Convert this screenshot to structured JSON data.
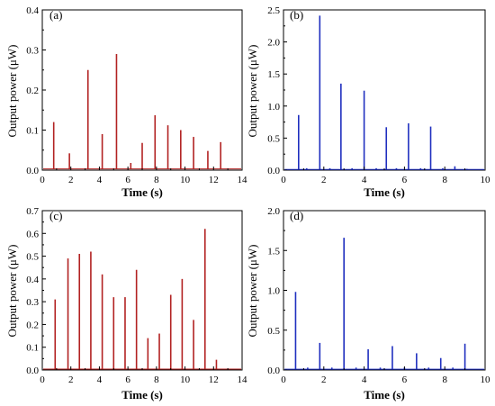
{
  "chart_data": [
    {
      "type": "bar",
      "panel_label": "(a)",
      "xlabel": "Time (s)",
      "ylabel": "Output power (μW)",
      "xlim": [
        0,
        14
      ],
      "ylim": [
        0,
        0.4
      ],
      "xticks": [
        0,
        2,
        4,
        6,
        8,
        10,
        12,
        14
      ],
      "yticks": [
        0.0,
        0.1,
        0.2,
        0.3,
        0.4
      ],
      "xtick_labels": [
        "0",
        "2",
        "4",
        "6",
        "8",
        "10",
        "12",
        "14"
      ],
      "ytick_labels": [
        "0.0",
        "0.1",
        "0.2",
        "0.3",
        "0.4"
      ],
      "color": "#b22222",
      "baseline": 0.003,
      "spikes": [
        {
          "x": 0.8,
          "y": 0.12
        },
        {
          "x": 1.9,
          "y": 0.042
        },
        {
          "x": 3.2,
          "y": 0.25
        },
        {
          "x": 4.2,
          "y": 0.09
        },
        {
          "x": 5.2,
          "y": 0.29
        },
        {
          "x": 6.2,
          "y": 0.018
        },
        {
          "x": 7.0,
          "y": 0.068
        },
        {
          "x": 7.9,
          "y": 0.137
        },
        {
          "x": 8.8,
          "y": 0.112
        },
        {
          "x": 9.7,
          "y": 0.1
        },
        {
          "x": 10.6,
          "y": 0.083
        },
        {
          "x": 11.6,
          "y": 0.048
        },
        {
          "x": 12.5,
          "y": 0.07
        }
      ]
    },
    {
      "type": "bar",
      "panel_label": "(b)",
      "xlabel": "Time (s)",
      "ylabel": "Output power (μW)",
      "xlim": [
        0,
        10
      ],
      "ylim": [
        0,
        2.5
      ],
      "xticks": [
        0,
        2,
        4,
        6,
        8,
        10
      ],
      "yticks": [
        0.0,
        0.5,
        1.0,
        1.5,
        2.0,
        2.5
      ],
      "xtick_labels": [
        "0",
        "2",
        "4",
        "6",
        "8",
        "10"
      ],
      "ytick_labels": [
        "0.0",
        "0.5",
        "1.0",
        "1.5",
        "2.0",
        "2.5"
      ],
      "color": "#1f2fbf",
      "baseline": 0.01,
      "spikes": [
        {
          "x": 0.75,
          "y": 0.86
        },
        {
          "x": 1.15,
          "y": 0.03
        },
        {
          "x": 1.8,
          "y": 2.41
        },
        {
          "x": 2.3,
          "y": 0.03
        },
        {
          "x": 2.85,
          "y": 1.35
        },
        {
          "x": 3.4,
          "y": 0.03
        },
        {
          "x": 4.0,
          "y": 1.24
        },
        {
          "x": 4.6,
          "y": 0.03
        },
        {
          "x": 5.1,
          "y": 0.67
        },
        {
          "x": 5.6,
          "y": 0.03
        },
        {
          "x": 6.2,
          "y": 0.73
        },
        {
          "x": 6.8,
          "y": 0.03
        },
        {
          "x": 7.3,
          "y": 0.68
        },
        {
          "x": 7.9,
          "y": 0.03
        },
        {
          "x": 8.5,
          "y": 0.06
        },
        {
          "x": 9.1,
          "y": 0.02
        }
      ]
    },
    {
      "type": "bar",
      "panel_label": "(c)",
      "xlabel": "Time (s)",
      "ylabel": "Output power (μW)",
      "xlim": [
        0,
        14
      ],
      "ylim": [
        0,
        0.7
      ],
      "xticks": [
        0,
        2,
        4,
        6,
        8,
        10,
        12,
        14
      ],
      "yticks": [
        0.0,
        0.1,
        0.2,
        0.3,
        0.4,
        0.5,
        0.6,
        0.7
      ],
      "xtick_labels": [
        "0",
        "2",
        "4",
        "6",
        "8",
        "10",
        "12",
        "14"
      ],
      "ytick_labels": [
        "0.0",
        "0.1",
        "0.2",
        "0.3",
        "0.4",
        "0.5",
        "0.6",
        "0.7"
      ],
      "color": "#b22222",
      "baseline": 0.004,
      "spikes": [
        {
          "x": 0.9,
          "y": 0.31
        },
        {
          "x": 1.8,
          "y": 0.49
        },
        {
          "x": 2.6,
          "y": 0.51
        },
        {
          "x": 3.4,
          "y": 0.52
        },
        {
          "x": 4.2,
          "y": 0.42
        },
        {
          "x": 5.0,
          "y": 0.32
        },
        {
          "x": 5.8,
          "y": 0.32
        },
        {
          "x": 6.6,
          "y": 0.44
        },
        {
          "x": 7.4,
          "y": 0.14
        },
        {
          "x": 8.2,
          "y": 0.16
        },
        {
          "x": 9.0,
          "y": 0.33
        },
        {
          "x": 9.8,
          "y": 0.4
        },
        {
          "x": 10.6,
          "y": 0.22
        },
        {
          "x": 11.4,
          "y": 0.62
        },
        {
          "x": 12.2,
          "y": 0.045
        }
      ]
    },
    {
      "type": "bar",
      "panel_label": "(d)",
      "xlabel": "Time (s)",
      "ylabel": "Output power (μW)",
      "xlim": [
        0,
        10
      ],
      "ylim": [
        0,
        2.0
      ],
      "xticks": [
        0,
        2,
        4,
        6,
        8,
        10
      ],
      "yticks": [
        0.0,
        0.5,
        1.0,
        1.5,
        2.0
      ],
      "xtick_labels": [
        "0",
        "2",
        "4",
        "6",
        "8",
        "10"
      ],
      "ytick_labels": [
        "0.0",
        "0.5",
        "1.0",
        "1.5",
        "2.0"
      ],
      "color": "#1f2fbf",
      "baseline": 0.01,
      "spikes": [
        {
          "x": 0.6,
          "y": 0.98
        },
        {
          "x": 1.2,
          "y": 0.03
        },
        {
          "x": 1.8,
          "y": 0.34
        },
        {
          "x": 2.4,
          "y": 0.03
        },
        {
          "x": 3.0,
          "y": 1.66
        },
        {
          "x": 3.6,
          "y": 0.03
        },
        {
          "x": 4.2,
          "y": 0.26
        },
        {
          "x": 4.8,
          "y": 0.03
        },
        {
          "x": 5.4,
          "y": 0.3
        },
        {
          "x": 6.0,
          "y": 0.03
        },
        {
          "x": 6.6,
          "y": 0.21
        },
        {
          "x": 7.2,
          "y": 0.03
        },
        {
          "x": 7.8,
          "y": 0.15
        },
        {
          "x": 8.4,
          "y": 0.03
        },
        {
          "x": 9.0,
          "y": 0.33
        }
      ]
    }
  ]
}
